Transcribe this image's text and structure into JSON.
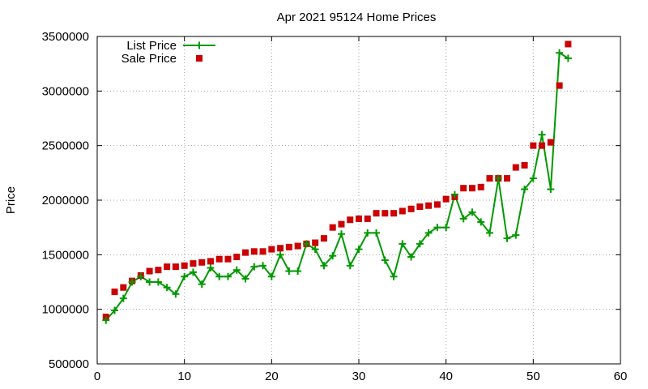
{
  "chart_data": {
    "type": "line",
    "title": "Apr 2021 95124 Home Prices",
    "xlabel": "",
    "ylabel": "Price",
    "xlim": [
      0,
      60
    ],
    "ylim": [
      500000,
      3500000
    ],
    "x_ticks": [
      0,
      10,
      20,
      30,
      40,
      50,
      60
    ],
    "y_ticks": [
      500000,
      1000000,
      1500000,
      2000000,
      2500000,
      3000000,
      3500000
    ],
    "grid": true,
    "legend_position": "top-left",
    "colors": {
      "list": "#009900",
      "sale": "#cc0000"
    },
    "series": [
      {
        "name": "List Price",
        "style": "line-plus",
        "x": [
          1,
          2,
          3,
          4,
          5,
          6,
          7,
          8,
          9,
          10,
          11,
          12,
          13,
          14,
          15,
          16,
          17,
          18,
          19,
          20,
          21,
          22,
          23,
          24,
          25,
          26,
          27,
          28,
          29,
          30,
          31,
          32,
          33,
          34,
          35,
          36,
          37,
          38,
          39,
          40,
          41,
          42,
          43,
          44,
          45,
          46,
          47,
          48,
          49,
          50,
          51,
          52,
          53,
          54
        ],
        "values": [
          900000,
          990000,
          1100000,
          1250000,
          1300000,
          1250000,
          1250000,
          1200000,
          1140000,
          1300000,
          1340000,
          1230000,
          1380000,
          1300000,
          1300000,
          1360000,
          1280000,
          1390000,
          1400000,
          1300000,
          1500000,
          1350000,
          1350000,
          1600000,
          1550000,
          1400000,
          1490000,
          1690000,
          1400000,
          1550000,
          1700000,
          1700000,
          1450000,
          1300000,
          1600000,
          1480000,
          1600000,
          1700000,
          1750000,
          1750000,
          2050000,
          1830000,
          1890000,
          1800000,
          1700000,
          2200000,
          1650000,
          1680000,
          2100000,
          2200000,
          2600000,
          2100000,
          3350000,
          3300000
        ]
      },
      {
        "name": "Sale Price",
        "style": "square",
        "x": [
          1,
          2,
          3,
          4,
          5,
          6,
          7,
          8,
          9,
          10,
          11,
          12,
          13,
          14,
          15,
          16,
          17,
          18,
          19,
          20,
          21,
          22,
          23,
          24,
          25,
          26,
          27,
          28,
          29,
          30,
          31,
          32,
          33,
          34,
          35,
          36,
          37,
          38,
          39,
          40,
          41,
          42,
          43,
          44,
          45,
          46,
          47,
          48,
          49,
          50,
          51,
          52,
          53,
          54
        ],
        "values": [
          930000,
          1160000,
          1200000,
          1260000,
          1310000,
          1350000,
          1360000,
          1390000,
          1390000,
          1400000,
          1420000,
          1430000,
          1440000,
          1460000,
          1460000,
          1480000,
          1520000,
          1530000,
          1530000,
          1550000,
          1560000,
          1570000,
          1580000,
          1600000,
          1610000,
          1650000,
          1750000,
          1780000,
          1820000,
          1830000,
          1830000,
          1880000,
          1880000,
          1880000,
          1900000,
          1920000,
          1940000,
          1950000,
          1960000,
          2010000,
          2030000,
          2110000,
          2110000,
          2120000,
          2200000,
          2200000,
          2200000,
          2300000,
          2320000,
          2500000,
          2500000,
          2530000,
          3050000,
          3430000
        ]
      }
    ]
  }
}
